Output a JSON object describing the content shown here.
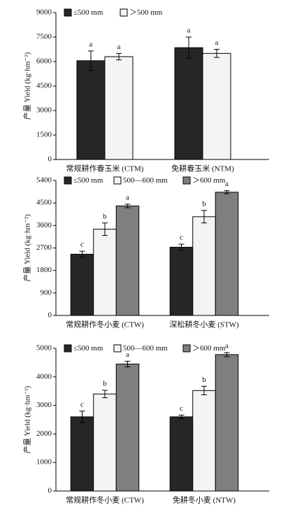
{
  "chart_data": [
    {
      "type": "bar",
      "y_label": "产量 Yield (kg·hm⁻²)",
      "categories": [
        "常规耕作春玉米 (CTM)",
        "免耕春玉米 (NTM)"
      ],
      "ylim": [
        0,
        9000
      ],
      "yticks": [
        0,
        1500,
        3000,
        4500,
        6000,
        7500,
        9000
      ],
      "series": [
        {
          "name": "≤500 mm",
          "color": "#262626",
          "values": [
            6050,
            6850
          ],
          "errors": [
            600,
            650
          ],
          "letters": [
            "a",
            "a"
          ]
        },
        {
          "name": "＞500 mm",
          "color": "#f4f4f4",
          "values": [
            6300,
            6500
          ],
          "errors": [
            200,
            250
          ],
          "letters": [
            "a",
            "a"
          ]
        }
      ]
    },
    {
      "type": "bar",
      "y_label": "产量 Yield (kg·hm⁻²)",
      "categories": [
        "常规耕作冬小麦 (CTW)",
        "深松耕冬小麦 (STW)"
      ],
      "ylim": [
        0,
        5400
      ],
      "yticks": [
        0,
        900,
        1800,
        2700,
        3600,
        4500,
        5400
      ],
      "series": [
        {
          "name": "≤500 mm",
          "color": "#262626",
          "values": [
            2450,
            2730
          ],
          "errors": [
            120,
            120
          ],
          "letters": [
            "c",
            "c"
          ]
        },
        {
          "name": "500—600 mm",
          "color": "#f4f4f4",
          "values": [
            3450,
            3950
          ],
          "errors": [
            250,
            250
          ],
          "letters": [
            "b",
            "b"
          ]
        },
        {
          "name": "＞600 mm",
          "color": "#7f7f7f",
          "values": [
            4380,
            4930
          ],
          "errors": [
            70,
            60
          ],
          "letters": [
            "a",
            "a"
          ]
        }
      ]
    },
    {
      "type": "bar",
      "y_label": "产量 Yield (kg·hm⁻²)",
      "categories": [
        "常规耕作冬小麦 (CTW)",
        "免耕冬小麦 (NTW)"
      ],
      "ylim": [
        0,
        5000
      ],
      "yticks": [
        0,
        1000,
        2000,
        3000,
        4000,
        5000
      ],
      "series": [
        {
          "name": "≤500 mm",
          "color": "#262626",
          "values": [
            2600,
            2600
          ],
          "errors": [
            200,
            60
          ],
          "letters": [
            "c",
            "c"
          ]
        },
        {
          "name": "500—600 mm",
          "color": "#f4f4f4",
          "values": [
            3400,
            3520
          ],
          "errors": [
            130,
            150
          ],
          "letters": [
            "b",
            "b"
          ]
        },
        {
          "name": "＞600 mm",
          "color": "#7f7f7f",
          "values": [
            4450,
            4780
          ],
          "errors": [
            100,
            70
          ],
          "letters": [
            "a",
            "a"
          ]
        }
      ]
    }
  ]
}
